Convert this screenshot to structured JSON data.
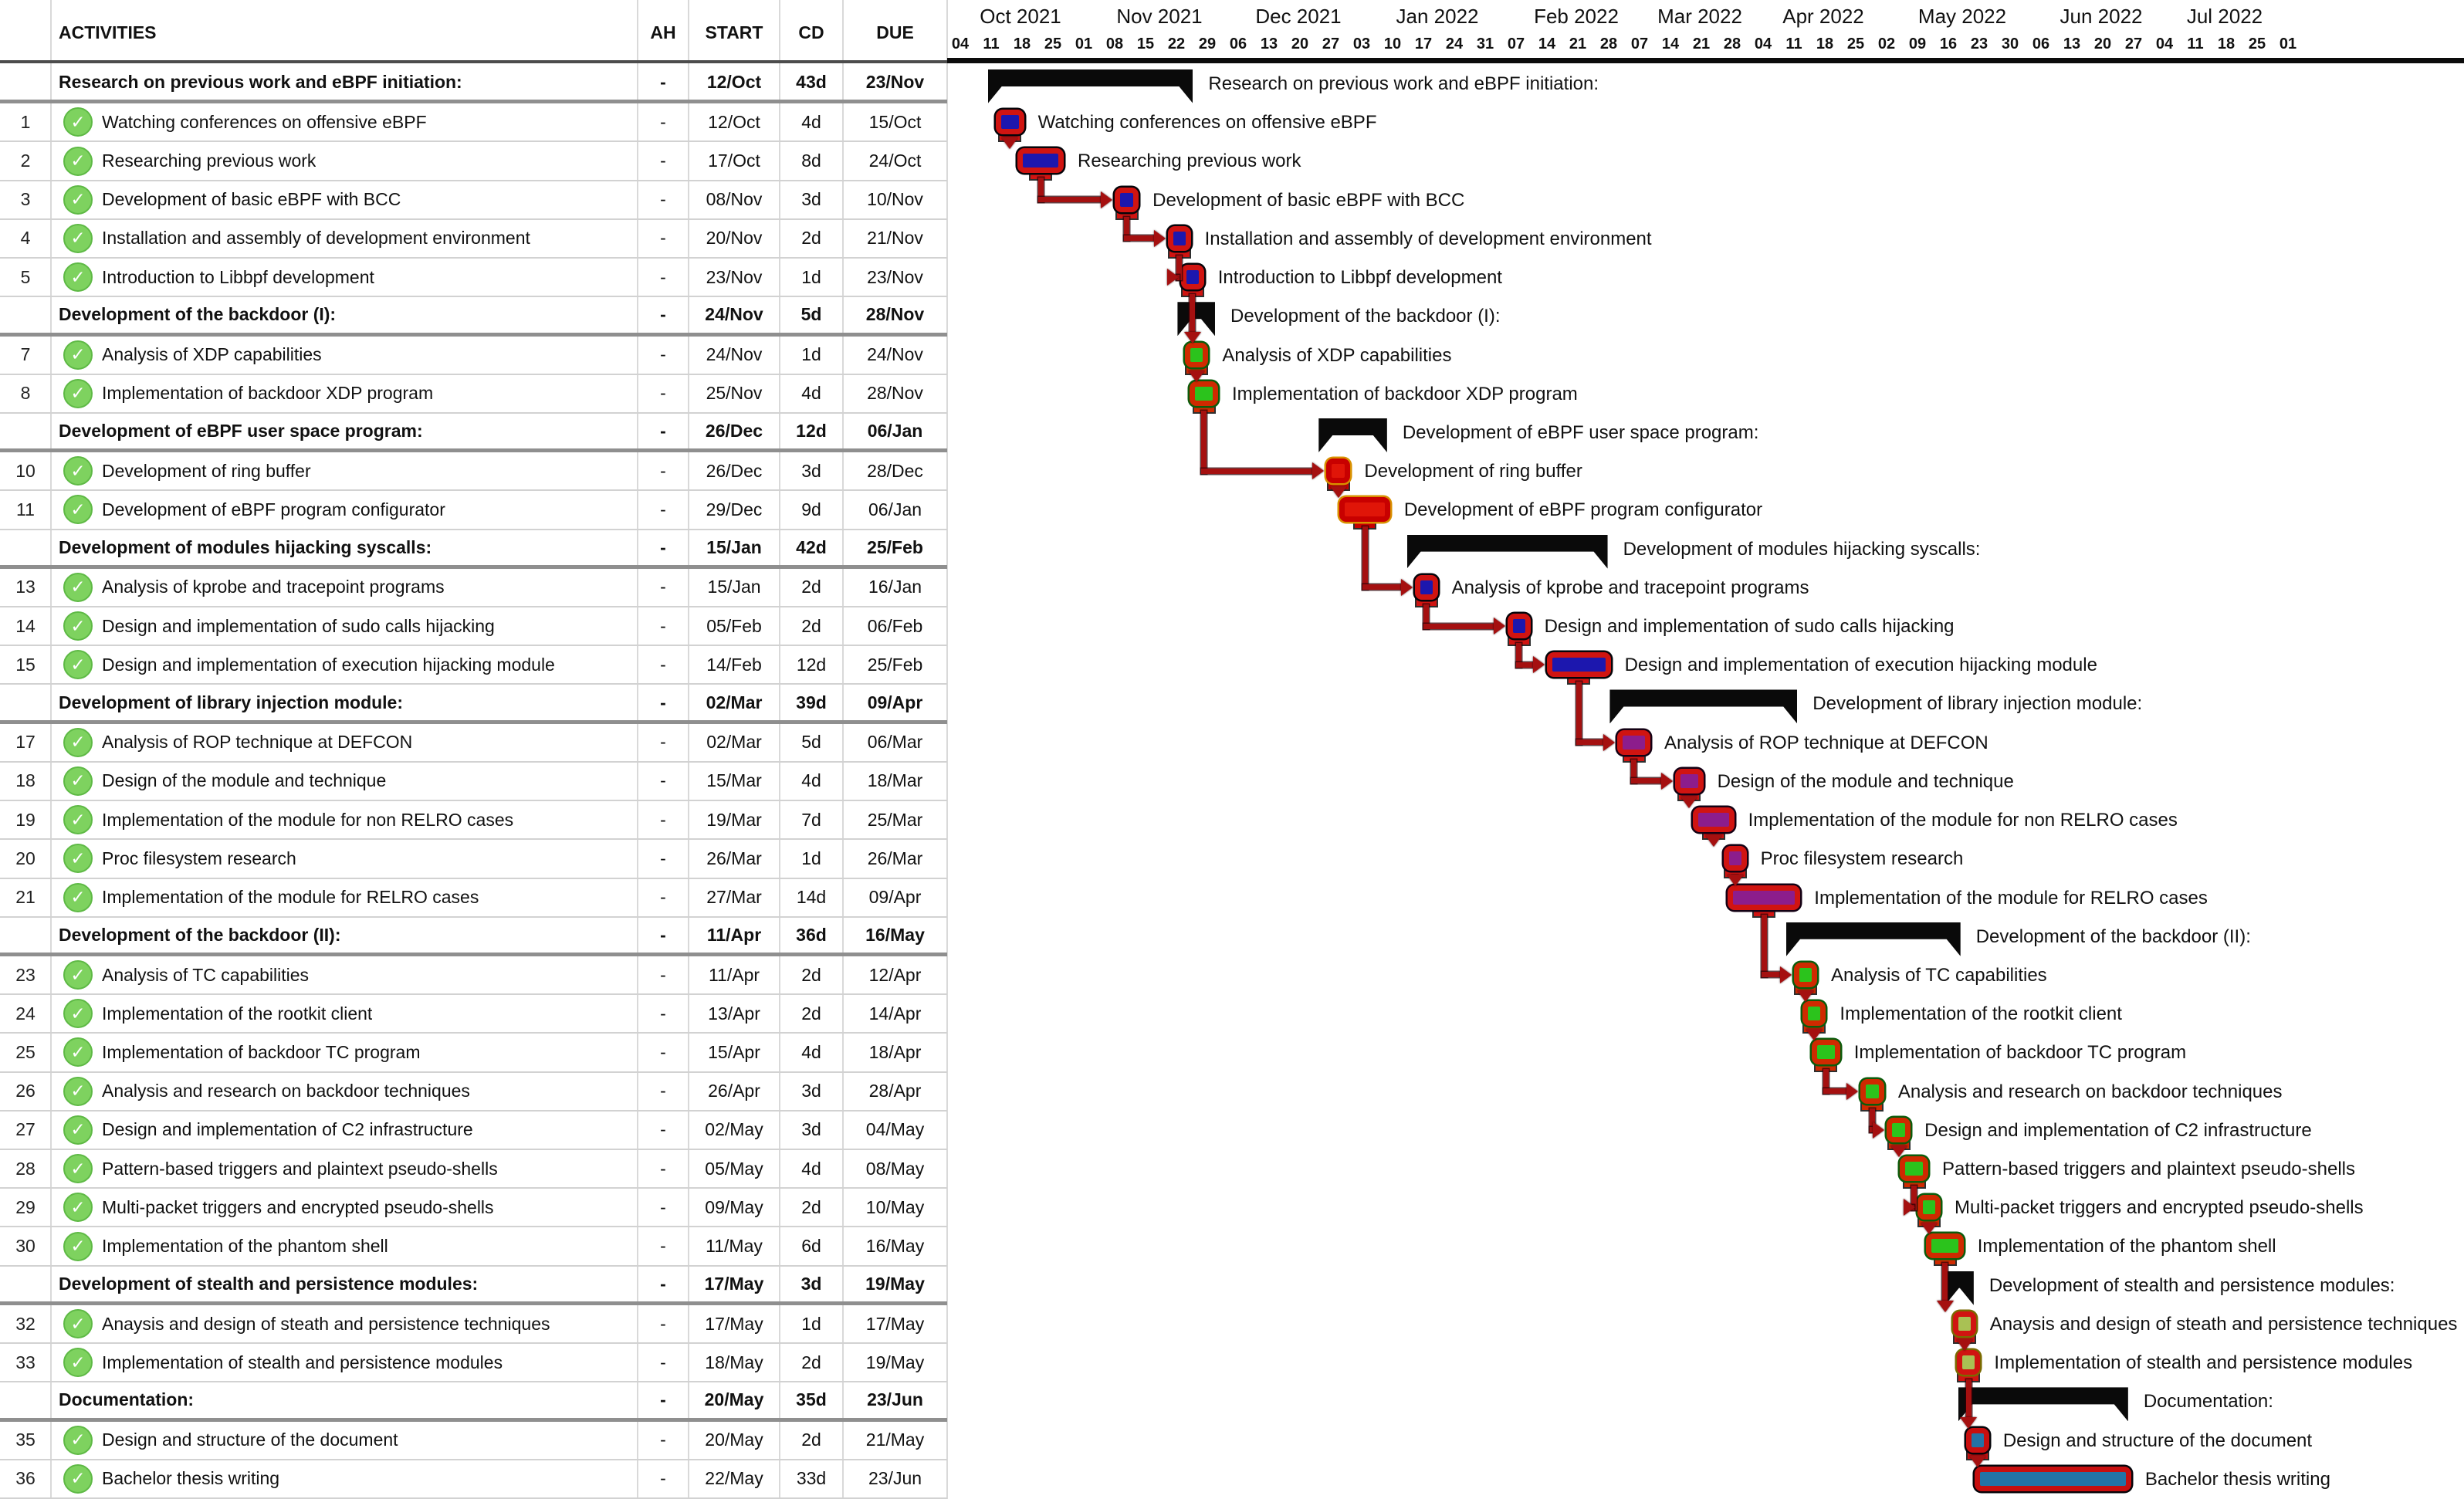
{
  "table": {
    "header": {
      "number": "",
      "activities": "ACTIVITIES",
      "ah": "AH",
      "start": "START",
      "cd": "CD",
      "due": "DUE"
    },
    "rows": [
      {
        "id": "g1",
        "type": "group",
        "num": "",
        "label": "Research on previous work and eBPF initiation:",
        "ah": "-",
        "start": "12/Oct",
        "cd": "43d",
        "due": "23/Nov",
        "start_iso": "2021-10-12",
        "due_iso": "2021-11-23"
      },
      {
        "id": "1",
        "type": "task",
        "num": "1",
        "label": "Watching conferences on offensive eBPF",
        "ah": "-",
        "start": "12/Oct",
        "cd": "4d",
        "due": "15/Oct",
        "start_iso": "2021-10-12",
        "due_iso": "2021-10-15",
        "color": "blue"
      },
      {
        "id": "2",
        "type": "task",
        "num": "2",
        "label": "Researching previous work",
        "ah": "-",
        "start": "17/Oct",
        "cd": "8d",
        "due": "24/Oct",
        "start_iso": "2021-10-17",
        "due_iso": "2021-10-24",
        "color": "blue"
      },
      {
        "id": "3",
        "type": "task",
        "num": "3",
        "label": "Development of basic eBPF with BCC",
        "ah": "-",
        "start": "08/Nov",
        "cd": "3d",
        "due": "10/Nov",
        "start_iso": "2021-11-08",
        "due_iso": "2021-11-10",
        "color": "blue"
      },
      {
        "id": "4",
        "type": "task",
        "num": "4",
        "label": "Installation and assembly of development environment",
        "ah": "-",
        "start": "20/Nov",
        "cd": "2d",
        "due": "21/Nov",
        "start_iso": "2021-11-20",
        "due_iso": "2021-11-21",
        "color": "blue"
      },
      {
        "id": "5",
        "type": "task",
        "num": "5",
        "label": "Introduction to Libbpf development",
        "ah": "-",
        "start": "23/Nov",
        "cd": "1d",
        "due": "23/Nov",
        "start_iso": "2021-11-23",
        "due_iso": "2021-11-23",
        "color": "blue"
      },
      {
        "id": "g2",
        "type": "group",
        "num": "",
        "label": "Development of the backdoor (I):",
        "ah": "-",
        "start": "24/Nov",
        "cd": "5d",
        "due": "28/Nov",
        "start_iso": "2021-11-24",
        "due_iso": "2021-11-28"
      },
      {
        "id": "7",
        "type": "task",
        "num": "7",
        "label": "Analysis of XDP capabilities",
        "ah": "-",
        "start": "24/Nov",
        "cd": "1d",
        "due": "24/Nov",
        "start_iso": "2021-11-24",
        "due_iso": "2021-11-24",
        "color": "green"
      },
      {
        "id": "8",
        "type": "task",
        "num": "8",
        "label": "Implementation of backdoor XDP program",
        "ah": "-",
        "start": "25/Nov",
        "cd": "4d",
        "due": "28/Nov",
        "start_iso": "2021-11-25",
        "due_iso": "2021-11-28",
        "color": "green"
      },
      {
        "id": "g3",
        "type": "group",
        "num": "",
        "label": "Development of eBPF user space program:",
        "ah": "-",
        "start": "26/Dec",
        "cd": "12d",
        "due": "06/Jan",
        "start_iso": "2021-12-26",
        "due_iso": "2022-01-06"
      },
      {
        "id": "10",
        "type": "task",
        "num": "10",
        "label": "Development of ring buffer",
        "ah": "-",
        "start": "26/Dec",
        "cd": "3d",
        "due": "28/Dec",
        "start_iso": "2021-12-26",
        "due_iso": "2021-12-28",
        "color": "red"
      },
      {
        "id": "11",
        "type": "task",
        "num": "11",
        "label": "Development of eBPF program configurator",
        "ah": "-",
        "start": "29/Dec",
        "cd": "9d",
        "due": "06/Jan",
        "start_iso": "2021-12-29",
        "due_iso": "2022-01-06",
        "color": "red"
      },
      {
        "id": "g4",
        "type": "group",
        "num": "",
        "label": "Development of modules hijacking syscalls:",
        "ah": "-",
        "start": "15/Jan",
        "cd": "42d",
        "due": "25/Feb",
        "start_iso": "2022-01-15",
        "due_iso": "2022-02-25"
      },
      {
        "id": "13",
        "type": "task",
        "num": "13",
        "label": "Analysis of kprobe and tracepoint programs",
        "ah": "-",
        "start": "15/Jan",
        "cd": "2d",
        "due": "16/Jan",
        "start_iso": "2022-01-15",
        "due_iso": "2022-01-16",
        "color": "blue"
      },
      {
        "id": "14",
        "type": "task",
        "num": "14",
        "label": "Design and implementation of sudo calls hijacking",
        "ah": "-",
        "start": "05/Feb",
        "cd": "2d",
        "due": "06/Feb",
        "start_iso": "2022-02-05",
        "due_iso": "2022-02-06",
        "color": "blue"
      },
      {
        "id": "15",
        "type": "task",
        "num": "15",
        "label": "Design and implementation of execution hijacking module",
        "ah": "-",
        "start": "14/Feb",
        "cd": "12d",
        "due": "25/Feb",
        "start_iso": "2022-02-14",
        "due_iso": "2022-02-25",
        "color": "blue"
      },
      {
        "id": "g5",
        "type": "group",
        "num": "",
        "label": "Development of library injection module:",
        "ah": "-",
        "start": "02/Mar",
        "cd": "39d",
        "due": "09/Apr",
        "start_iso": "2022-03-02",
        "due_iso": "2022-04-09"
      },
      {
        "id": "17",
        "type": "task",
        "num": "17",
        "label": "Analysis of ROP technique at DEFCON",
        "ah": "-",
        "start": "02/Mar",
        "cd": "5d",
        "due": "06/Mar",
        "start_iso": "2022-03-02",
        "due_iso": "2022-03-06",
        "color": "purple"
      },
      {
        "id": "18",
        "type": "task",
        "num": "18",
        "label": "Design of the module and technique",
        "ah": "-",
        "start": "15/Mar",
        "cd": "4d",
        "due": "18/Mar",
        "start_iso": "2022-03-15",
        "due_iso": "2022-03-18",
        "color": "purple"
      },
      {
        "id": "19",
        "type": "task",
        "num": "19",
        "label": "Implementation of the module for non RELRO cases",
        "ah": "-",
        "start": "19/Mar",
        "cd": "7d",
        "due": "25/Mar",
        "start_iso": "2022-03-19",
        "due_iso": "2022-03-25",
        "color": "purple"
      },
      {
        "id": "20",
        "type": "task",
        "num": "20",
        "label": "Proc filesystem research",
        "ah": "-",
        "start": "26/Mar",
        "cd": "1d",
        "due": "26/Mar",
        "start_iso": "2022-03-26",
        "due_iso": "2022-03-26",
        "color": "purple"
      },
      {
        "id": "21",
        "type": "task",
        "num": "21",
        "label": "Implementation of the module for RELRO cases",
        "ah": "-",
        "start": "27/Mar",
        "cd": "14d",
        "due": "09/Apr",
        "start_iso": "2022-03-27",
        "due_iso": "2022-04-09",
        "color": "purple"
      },
      {
        "id": "g6",
        "type": "group",
        "num": "",
        "label": "Development of the backdoor (II):",
        "ah": "-",
        "start": "11/Apr",
        "cd": "36d",
        "due": "16/May",
        "start_iso": "2022-04-11",
        "due_iso": "2022-05-16"
      },
      {
        "id": "23",
        "type": "task",
        "num": "23",
        "label": "Analysis of TC capabilities",
        "ah": "-",
        "start": "11/Apr",
        "cd": "2d",
        "due": "12/Apr",
        "start_iso": "2022-04-11",
        "due_iso": "2022-04-12",
        "color": "green"
      },
      {
        "id": "24",
        "type": "task",
        "num": "24",
        "label": "Implementation of the rootkit client",
        "ah": "-",
        "start": "13/Apr",
        "cd": "2d",
        "due": "14/Apr",
        "start_iso": "2022-04-13",
        "due_iso": "2022-04-14",
        "color": "green"
      },
      {
        "id": "25",
        "type": "task",
        "num": "25",
        "label": "Implementation of backdoor TC program",
        "ah": "-",
        "start": "15/Apr",
        "cd": "4d",
        "due": "18/Apr",
        "start_iso": "2022-04-15",
        "due_iso": "2022-04-18",
        "color": "green"
      },
      {
        "id": "26",
        "type": "task",
        "num": "26",
        "label": "Analysis and research on backdoor techniques",
        "ah": "-",
        "start": "26/Apr",
        "cd": "3d",
        "due": "28/Apr",
        "start_iso": "2022-04-26",
        "due_iso": "2022-04-28",
        "color": "green"
      },
      {
        "id": "27",
        "type": "task",
        "num": "27",
        "label": "Design and implementation of C2 infrastructure",
        "ah": "-",
        "start": "02/May",
        "cd": "3d",
        "due": "04/May",
        "start_iso": "2022-05-02",
        "due_iso": "2022-05-04",
        "color": "green"
      },
      {
        "id": "28",
        "type": "task",
        "num": "28",
        "label": "Pattern-based triggers and plaintext pseudo-shells",
        "ah": "-",
        "start": "05/May",
        "cd": "4d",
        "due": "08/May",
        "start_iso": "2022-05-05",
        "due_iso": "2022-05-08",
        "color": "green"
      },
      {
        "id": "29",
        "type": "task",
        "num": "29",
        "label": "Multi-packet triggers and encrypted pseudo-shells",
        "ah": "-",
        "start": "09/May",
        "cd": "2d",
        "due": "10/May",
        "start_iso": "2022-05-09",
        "due_iso": "2022-05-10",
        "color": "green"
      },
      {
        "id": "30",
        "type": "task",
        "num": "30",
        "label": "Implementation of the phantom shell",
        "ah": "-",
        "start": "11/May",
        "cd": "6d",
        "due": "16/May",
        "start_iso": "2022-05-11",
        "due_iso": "2022-05-16",
        "color": "green"
      },
      {
        "id": "g7",
        "type": "group",
        "num": "",
        "label": "Development of stealth and persistence modules:",
        "ah": "-",
        "start": "17/May",
        "cd": "3d",
        "due": "19/May",
        "start_iso": "2022-05-17",
        "due_iso": "2022-05-19"
      },
      {
        "id": "32",
        "type": "task",
        "num": "32",
        "label": "Anaysis and design of steath and persistence techniques",
        "ah": "-",
        "start": "17/May",
        "cd": "1d",
        "due": "17/May",
        "start_iso": "2022-05-17",
        "due_iso": "2022-05-17",
        "color": "olive"
      },
      {
        "id": "33",
        "type": "task",
        "num": "33",
        "label": "Implementation of stealth and persistence modules",
        "ah": "-",
        "start": "18/May",
        "cd": "2d",
        "due": "19/May",
        "start_iso": "2022-05-18",
        "due_iso": "2022-05-19",
        "color": "olive"
      },
      {
        "id": "g8",
        "type": "group",
        "num": "",
        "label": "Documentation:",
        "ah": "-",
        "start": "20/May",
        "cd": "35d",
        "due": "23/Jun",
        "start_iso": "2022-05-20",
        "due_iso": "2022-06-23"
      },
      {
        "id": "35",
        "type": "task",
        "num": "35",
        "label": "Design and structure of the document",
        "ah": "-",
        "start": "20/May",
        "cd": "2d",
        "due": "21/May",
        "start_iso": "2022-05-20",
        "due_iso": "2022-05-21",
        "color": "steel"
      },
      {
        "id": "36",
        "type": "task",
        "num": "36",
        "label": "Bachelor thesis writing",
        "ah": "-",
        "start": "22/May",
        "cd": "33d",
        "due": "23/Jun",
        "start_iso": "2022-05-22",
        "due_iso": "2022-06-23",
        "color": "steel"
      }
    ]
  },
  "timeline": {
    "start_date": "2021-10-04",
    "months": [
      {
        "label": "Oct 2021",
        "weeks": [
          "04",
          "11",
          "18",
          "25"
        ]
      },
      {
        "label": "Nov 2021",
        "weeks": [
          "01",
          "08",
          "15",
          "22",
          "29"
        ]
      },
      {
        "label": "Dec 2021",
        "weeks": [
          "06",
          "13",
          "20",
          "27"
        ]
      },
      {
        "label": "Jan 2022",
        "weeks": [
          "03",
          "10",
          "17",
          "24",
          "31"
        ]
      },
      {
        "label": "Feb 2022",
        "weeks": [
          "07",
          "14",
          "21",
          "28"
        ]
      },
      {
        "label": "Mar 2022",
        "weeks": [
          "07",
          "14",
          "21",
          "28"
        ]
      },
      {
        "label": "Apr 2022",
        "weeks": [
          "04",
          "11",
          "18",
          "25"
        ]
      },
      {
        "label": "May 2022",
        "weeks": [
          "02",
          "09",
          "16",
          "23",
          "30"
        ]
      },
      {
        "label": "Jun 2022",
        "weeks": [
          "06",
          "13",
          "20",
          "27"
        ]
      },
      {
        "label": "Jul 2022",
        "weeks": [
          "04",
          "11",
          "18",
          "25"
        ]
      },
      {
        "label": "",
        "weeks": [
          "01"
        ]
      }
    ]
  },
  "chart": {
    "colors": {
      "blue": {
        "fill": "#1c17ae",
        "border": "#d01411",
        "outline": "#05050a"
      },
      "green": {
        "fill": "#2bc31c",
        "border": "#cf2a00",
        "outline": "#0b5c0b"
      },
      "red": {
        "fill": "#e01508",
        "border": "#c80000",
        "outline": "#d89000"
      },
      "purple": {
        "fill": "#8c1d8c",
        "border": "#d01411",
        "outline": "#140114"
      },
      "olive": {
        "fill": "#a9c154",
        "border": "#d01411",
        "outline": "#7a6a00"
      },
      "steel": {
        "fill": "#2473a6",
        "border": "#c80f0f",
        "outline": "#05050a"
      },
      "summary": "#0a0a0a",
      "arrow": "#a51010"
    },
    "dependencies": [
      {
        "from": "1",
        "to": "2",
        "shape": "down"
      },
      {
        "from": "2",
        "to": "3",
        "shape": "hook"
      },
      {
        "from": "3",
        "to": "4",
        "shape": "hook"
      },
      {
        "from": "4",
        "to": "5",
        "shape": "hook"
      },
      {
        "from": "5",
        "to": "7",
        "shape": "down"
      },
      {
        "from": "7",
        "to": "8",
        "shape": "down"
      },
      {
        "from": "8",
        "to": "10",
        "shape": "hook"
      },
      {
        "from": "10",
        "to": "11",
        "shape": "down"
      },
      {
        "from": "11",
        "to": "13",
        "shape": "hook"
      },
      {
        "from": "13",
        "to": "14",
        "shape": "hook"
      },
      {
        "from": "14",
        "to": "15",
        "shape": "hook"
      },
      {
        "from": "15",
        "to": "17",
        "shape": "hook"
      },
      {
        "from": "17",
        "to": "18",
        "shape": "hook"
      },
      {
        "from": "18",
        "to": "19",
        "shape": "down"
      },
      {
        "from": "19",
        "to": "20",
        "shape": "down"
      },
      {
        "from": "20",
        "to": "21",
        "shape": "down"
      },
      {
        "from": "21",
        "to": "23",
        "shape": "hook"
      },
      {
        "from": "23",
        "to": "24",
        "shape": "down"
      },
      {
        "from": "24",
        "to": "25",
        "shape": "down"
      },
      {
        "from": "25",
        "to": "26",
        "shape": "hook"
      },
      {
        "from": "26",
        "to": "27",
        "shape": "hook"
      },
      {
        "from": "27",
        "to": "28",
        "shape": "down"
      },
      {
        "from": "28",
        "to": "29",
        "shape": "hook"
      },
      {
        "from": "29",
        "to": "30",
        "shape": "down"
      },
      {
        "from": "30",
        "to": "32",
        "shape": "down"
      },
      {
        "from": "32",
        "to": "33",
        "shape": "down"
      },
      {
        "from": "33",
        "to": "35",
        "shape": "down"
      },
      {
        "from": "35",
        "to": "36",
        "shape": "down"
      }
    ]
  }
}
